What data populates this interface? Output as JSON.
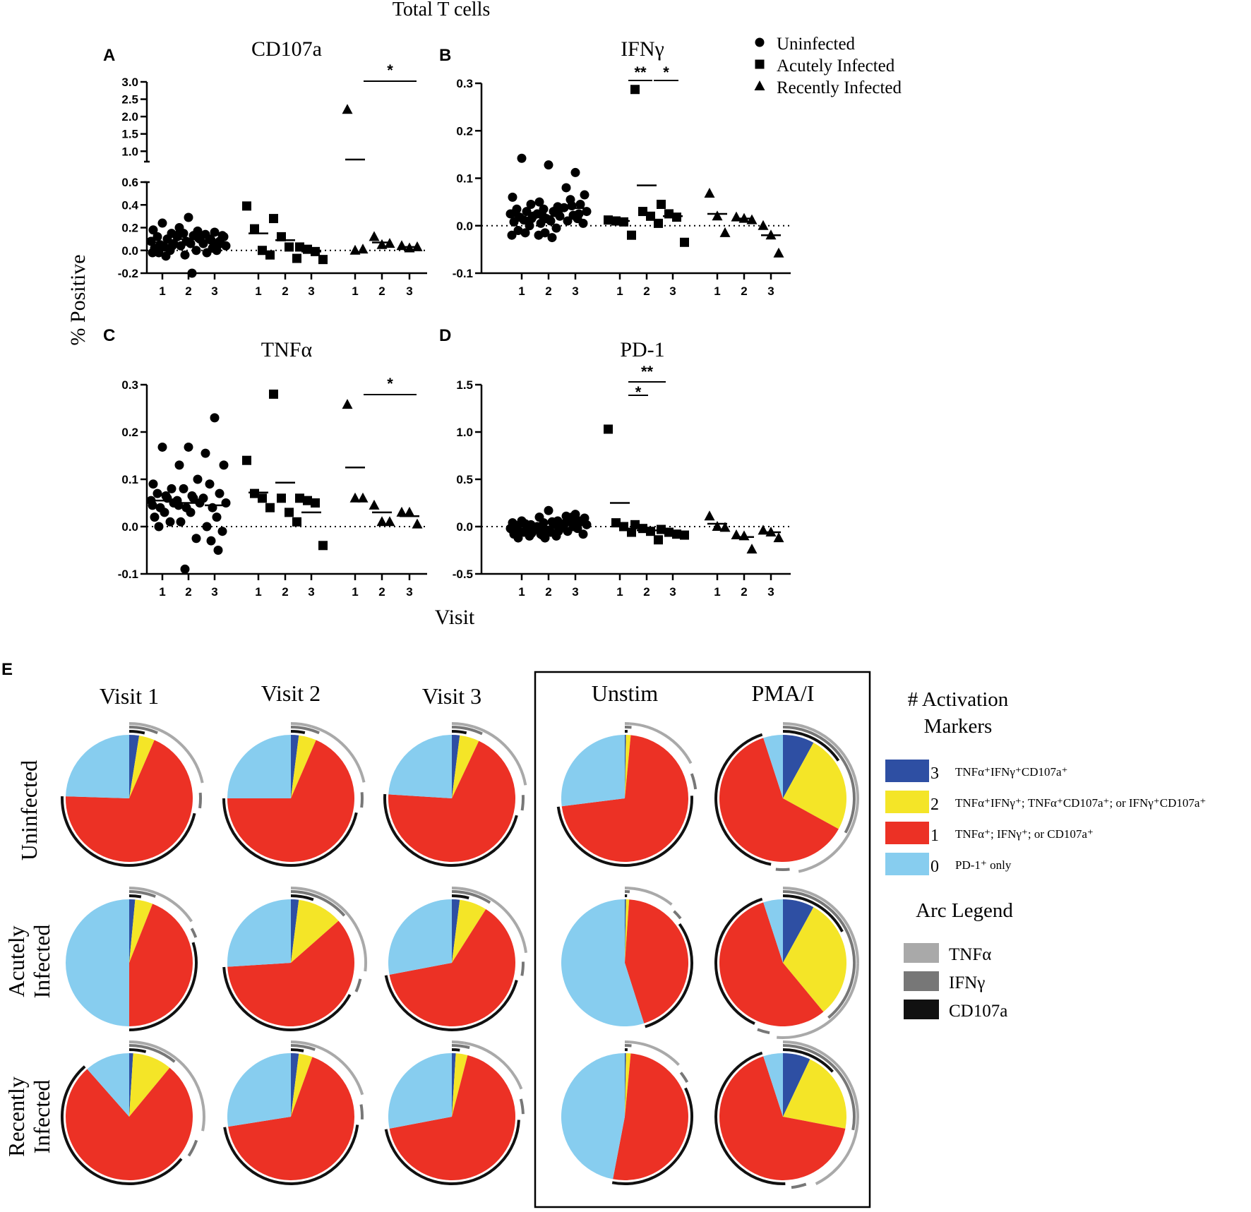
{
  "figure": {
    "top_title": "Total T cells",
    "y_label": "% Positive",
    "x_label": "Visit",
    "panel_e_letter": "E"
  },
  "legend": {
    "entries": [
      {
        "symbol": "circle",
        "label": "Uninfected"
      },
      {
        "symbol": "square",
        "label": "Acutely Infected"
      },
      {
        "symbol": "triangle",
        "label": "Recently Infected"
      }
    ]
  },
  "chart_data": [
    {
      "type": "scatter",
      "letter": "A",
      "title": "CD107a",
      "x_ticks": [
        "1",
        "2",
        "3",
        "1",
        "2",
        "3",
        "1",
        "2",
        "3"
      ],
      "groups": [
        "Uninfected",
        "Acutely Infected",
        "Recently Infected"
      ],
      "y_segments": [
        {
          "range": [
            -0.2,
            0.6
          ],
          "ticks": [
            "-0.2",
            "0.0",
            "0.2",
            "0.4",
            "0.6"
          ],
          "tick_values": [
            -0.2,
            0.0,
            0.2,
            0.4,
            0.6
          ]
        },
        {
          "range": [
            0.7,
            3.0
          ],
          "ticks": [
            "1.0",
            "1.5",
            "2.0",
            "2.5",
            "3.0"
          ],
          "tick_values": [
            1.0,
            1.5,
            2.0,
            2.5,
            3.0
          ]
        }
      ],
      "series": [
        {
          "group": "Uninfected",
          "visit": 1,
          "values": [
            0.24,
            0.18,
            0.15,
            0.12,
            0.1,
            0.08,
            0.06,
            0.05,
            0.03,
            0.02,
            0.0,
            -0.02,
            -0.05,
            -0.02,
            0.04
          ],
          "mean": 0.07
        },
        {
          "group": "Uninfected",
          "visit": 2,
          "values": [
            0.29,
            0.2,
            0.17,
            0.15,
            0.13,
            0.12,
            0.1,
            0.08,
            0.06,
            0.04,
            0.0,
            -0.04,
            -0.2,
            0.14,
            0.11
          ],
          "mean": 0.1
        },
        {
          "group": "Uninfected",
          "visit": 3,
          "values": [
            0.16,
            0.14,
            0.12,
            0.1,
            0.08,
            0.06,
            0.04,
            0.02,
            0.0,
            -0.02,
            0.13,
            0.09,
            0.05
          ],
          "mean": 0.08
        },
        {
          "group": "Acutely Infected",
          "visit": 1,
          "values": [
            0.39,
            0.19,
            0.0,
            -0.04
          ],
          "mean": 0.15
        },
        {
          "group": "Acutely Infected",
          "visit": 2,
          "values": [
            0.28,
            0.12,
            0.03,
            -0.07
          ],
          "mean": 0.09
        },
        {
          "group": "Acutely Infected",
          "visit": 3,
          "values": [
            0.03,
            0.01,
            -0.01,
            -0.08
          ],
          "mean": -0.01
        },
        {
          "group": "Recently Infected",
          "visit": 1,
          "values": [
            2.2,
            0.0,
            0.01
          ],
          "mean": 0.76
        },
        {
          "group": "Recently Infected",
          "visit": 2,
          "values": [
            0.12,
            0.05,
            0.06
          ],
          "mean": 0.07
        },
        {
          "group": "Recently Infected",
          "visit": 3,
          "values": [
            0.04,
            0.02,
            0.03
          ],
          "mean": 0.03
        }
      ],
      "significance": [
        {
          "label": "*",
          "from": "Recently Infected visit 1",
          "to": "Recently Infected visit 3"
        }
      ]
    },
    {
      "type": "scatter",
      "letter": "B",
      "title": "IFNγ",
      "x_ticks": [
        "1",
        "2",
        "3",
        "1",
        "2",
        "3",
        "1",
        "2",
        "3"
      ],
      "y_range": [
        -0.1,
        0.3
      ],
      "y_ticks": [
        "-0.1",
        "0.0",
        "0.1",
        "0.2",
        "0.3"
      ],
      "y_tick_values": [
        -0.1,
        0.0,
        0.1,
        0.2,
        0.3
      ],
      "series": [
        {
          "group": "Uninfected",
          "visit": 1,
          "values": [
            0.142,
            0.06,
            0.045,
            0.035,
            0.03,
            0.025,
            0.02,
            0.018,
            0.012,
            0.008,
            0.0,
            -0.01,
            -0.015,
            -0.02,
            0.015,
            0.028
          ],
          "mean": 0.017
        },
        {
          "group": "Uninfected",
          "visit": 2,
          "values": [
            0.128,
            0.05,
            0.04,
            0.035,
            0.03,
            0.025,
            0.02,
            0.015,
            0.01,
            0.005,
            -0.005,
            -0.015,
            -0.025,
            -0.02,
            0.032,
            0.022
          ],
          "mean": 0.02
        },
        {
          "group": "Uninfected",
          "visit": 3,
          "values": [
            0.112,
            0.08,
            0.065,
            0.055,
            0.045,
            0.038,
            0.03,
            0.022,
            0.015,
            0.01,
            0.005,
            0.042,
            0.025
          ],
          "mean": 0.037
        },
        {
          "group": "Acutely Infected",
          "visit": 1,
          "values": [
            0.012,
            0.01,
            0.008,
            -0.02
          ],
          "mean": 0.01
        },
        {
          "group": "Acutely Infected",
          "visit": 2,
          "values": [
            0.287,
            0.03,
            0.02,
            0.005
          ],
          "mean": 0.085
        },
        {
          "group": "Acutely Infected",
          "visit": 3,
          "values": [
            0.045,
            0.025,
            0.018,
            -0.035
          ],
          "mean": 0.02
        },
        {
          "group": "Recently Infected",
          "visit": 1,
          "values": [
            0.068,
            0.02,
            -0.015
          ],
          "mean": 0.025
        },
        {
          "group": "Recently Infected",
          "visit": 2,
          "values": [
            0.018,
            0.015,
            0.012
          ],
          "mean": 0.015
        },
        {
          "group": "Recently Infected",
          "visit": 3,
          "values": [
            0.0,
            -0.02,
            -0.058
          ],
          "mean": -0.02
        }
      ],
      "significance": [
        {
          "label": "**",
          "from": "Acutely Infected visit 1",
          "to": "Acutely Infected visit 2"
        },
        {
          "label": "*",
          "from": "Acutely Infected visit 2",
          "to": "Acutely Infected visit 3"
        }
      ]
    },
    {
      "type": "scatter",
      "letter": "C",
      "title": "TNFα",
      "x_ticks": [
        "1",
        "2",
        "3",
        "1",
        "2",
        "3",
        "1",
        "2",
        "3"
      ],
      "y_range": [
        -0.1,
        0.3
      ],
      "y_ticks": [
        "-0.1",
        "0.0",
        "0.1",
        "0.2",
        "0.3"
      ],
      "y_tick_values": [
        -0.1,
        0.0,
        0.1,
        0.2,
        0.3
      ],
      "series": [
        {
          "group": "Uninfected",
          "visit": 1,
          "values": [
            0.168,
            0.09,
            0.08,
            0.07,
            0.06,
            0.055,
            0.05,
            0.04,
            0.03,
            0.02,
            0.01,
            0.0,
            0.065,
            0.045
          ],
          "mean": 0.055
        },
        {
          "group": "Uninfected",
          "visit": 2,
          "values": [
            0.168,
            0.13,
            0.1,
            0.08,
            0.06,
            0.055,
            0.05,
            0.04,
            0.03,
            0.01,
            -0.025,
            -0.09,
            0.065,
            0.045
          ],
          "mean": 0.05
        },
        {
          "group": "Uninfected",
          "visit": 3,
          "values": [
            0.23,
            0.155,
            0.13,
            0.09,
            0.07,
            0.06,
            0.05,
            0.04,
            0.02,
            0.0,
            -0.01,
            -0.03,
            -0.05
          ],
          "mean": 0.045
        },
        {
          "group": "Acutely Infected",
          "visit": 1,
          "values": [
            0.14,
            0.07,
            0.06,
            0.04
          ],
          "mean": 0.072
        },
        {
          "group": "Acutely Infected",
          "visit": 2,
          "values": [
            0.28,
            0.06,
            0.03,
            0.01
          ],
          "mean": 0.093
        },
        {
          "group": "Acutely Infected",
          "visit": 3,
          "values": [
            0.06,
            0.055,
            0.05,
            -0.04
          ],
          "mean": 0.03
        },
        {
          "group": "Recently Infected",
          "visit": 1,
          "values": [
            0.258,
            0.06,
            0.06
          ],
          "mean": 0.125
        },
        {
          "group": "Recently Infected",
          "visit": 2,
          "values": [
            0.045,
            0.01,
            0.01
          ],
          "mean": 0.03
        },
        {
          "group": "Recently Infected",
          "visit": 3,
          "values": [
            0.03,
            0.03,
            0.005
          ],
          "mean": 0.022
        }
      ],
      "significance": [
        {
          "label": "*",
          "from": "Recently Infected visit 1",
          "to": "Recently Infected visit 3"
        }
      ]
    },
    {
      "type": "scatter",
      "letter": "D",
      "title": "PD-1",
      "x_ticks": [
        "1",
        "2",
        "3",
        "1",
        "2",
        "3",
        "1",
        "2",
        "3"
      ],
      "y_range": [
        -0.5,
        1.5
      ],
      "y_ticks": [
        "-0.5",
        "0.0",
        "0.5",
        "1.0",
        "1.5"
      ],
      "y_tick_values": [
        -0.5,
        0.0,
        0.5,
        1.0,
        1.5
      ],
      "series": [
        {
          "group": "Uninfected",
          "visit": 1,
          "values": [
            0.06,
            0.04,
            0.02,
            0.01,
            0.0,
            -0.02,
            -0.04,
            -0.05,
            -0.06,
            -0.08,
            -0.1,
            -0.12,
            0.03,
            -0.03,
            -0.07
          ],
          "mean": -0.03
        },
        {
          "group": "Uninfected",
          "visit": 2,
          "values": [
            0.17,
            0.1,
            0.06,
            0.04,
            0.02,
            0.0,
            -0.02,
            -0.04,
            -0.06,
            -0.08,
            -0.1,
            -0.12,
            0.05,
            -0.01,
            -0.05,
            -0.09
          ],
          "mean": 0.0
        },
        {
          "group": "Uninfected",
          "visit": 3,
          "values": [
            0.13,
            0.11,
            0.09,
            0.07,
            0.05,
            0.03,
            0.02,
            0.0,
            -0.02,
            -0.05,
            -0.08,
            0.1,
            0.06,
            0.04
          ],
          "mean": 0.04
        },
        {
          "group": "Acutely Infected",
          "visit": 1,
          "values": [
            1.03,
            0.04,
            0.0,
            -0.06
          ],
          "mean": 0.25
        },
        {
          "group": "Acutely Infected",
          "visit": 2,
          "values": [
            0.02,
            -0.02,
            -0.05,
            -0.14
          ],
          "mean": -0.04
        },
        {
          "group": "Acutely Infected",
          "visit": 3,
          "values": [
            -0.03,
            -0.06,
            -0.08,
            -0.09
          ],
          "mean": -0.07
        },
        {
          "group": "Recently Infected",
          "visit": 1,
          "values": [
            0.11,
            0.0,
            -0.01
          ],
          "mean": 0.03
        },
        {
          "group": "Recently Infected",
          "visit": 2,
          "values": [
            -0.09,
            -0.1,
            -0.24
          ],
          "mean": -0.11
        },
        {
          "group": "Recently Infected",
          "visit": 3,
          "values": [
            -0.04,
            -0.06,
            -0.12
          ],
          "mean": -0.06
        }
      ],
      "significance": [
        {
          "label": "*",
          "from": "Acutely Infected visit 1",
          "to": "Acutely Infected visit 2"
        },
        {
          "label": "**",
          "from": "Acutely Infected visit 1",
          "to": "Acutely Infected visit 3"
        }
      ]
    },
    {
      "type": "pie",
      "letter": "E",
      "column_titles": [
        "Visit 1",
        "Visit 2",
        "Visit 3",
        "Unstim",
        "PMA/I"
      ],
      "row_titles": [
        [
          "Uninfected"
        ],
        [
          "Acutely",
          "Infected"
        ],
        [
          "Recently",
          "Infected"
        ]
      ],
      "slice_order": [
        "3 markers",
        "2 markers",
        "1 marker",
        "0 markers"
      ],
      "pies": [
        [
          {
            "fractions": [
              0.025,
              0.04,
              0.69,
              0.245
            ]
          },
          {
            "fractions": [
              0.02,
              0.045,
              0.685,
              0.25
            ]
          },
          {
            "fractions": [
              0.02,
              0.05,
              0.69,
              0.24
            ]
          },
          {
            "fractions": [
              0.003,
              0.012,
              0.715,
              0.27
            ]
          },
          {
            "fractions": [
              0.08,
              0.25,
              0.62,
              0.05
            ]
          }
        ],
        [
          {
            "fractions": [
              0.015,
              0.045,
              0.44,
              0.5
            ]
          },
          {
            "fractions": [
              0.02,
              0.115,
              0.605,
              0.26
            ]
          },
          {
            "fractions": [
              0.02,
              0.07,
              0.63,
              0.28
            ]
          },
          {
            "fractions": [
              0.003,
              0.008,
              0.44,
              0.549
            ]
          },
          {
            "fractions": [
              0.08,
              0.31,
              0.56,
              0.05
            ]
          }
        ],
        [
          {
            "fractions": [
              0.01,
              0.1,
              0.775,
              0.115
            ]
          },
          {
            "fractions": [
              0.02,
              0.035,
              0.67,
              0.275
            ]
          },
          {
            "fractions": [
              0.01,
              0.03,
              0.68,
              0.28
            ]
          },
          {
            "fractions": [
              0.003,
              0.012,
              0.515,
              0.47
            ]
          },
          {
            "fractions": [
              0.07,
              0.21,
              0.67,
              0.05
            ]
          }
        ]
      ],
      "boxed_columns": [
        "Unstim",
        "PMA/I"
      ],
      "category_legend": {
        "title": [
          "# Activation",
          "Markers"
        ],
        "items": [
          {
            "count": "3",
            "label": "TNFα⁺IFNγ⁺CD107a⁺",
            "color": "#2e4fa3"
          },
          {
            "count": "2",
            "label": "TNFα⁺IFNγ⁺; TNFα⁺CD107a⁺; or IFNγ⁺CD107a⁺",
            "color": "#f4e527"
          },
          {
            "count": "1",
            "label": "TNFα⁺; IFNγ⁺; or CD107a⁺",
            "color": "#ec3125"
          },
          {
            "count": "0",
            "label": "PD-1⁺ only",
            "color": "#87cdef"
          }
        ]
      },
      "arc_legend": {
        "title": "Arc Legend",
        "items": [
          {
            "label": "TNFα",
            "color": "#a9a9a9"
          },
          {
            "label": "IFNγ",
            "color": "#777777"
          },
          {
            "label": "CD107a",
            "color": "#111111"
          }
        ]
      }
    }
  ]
}
